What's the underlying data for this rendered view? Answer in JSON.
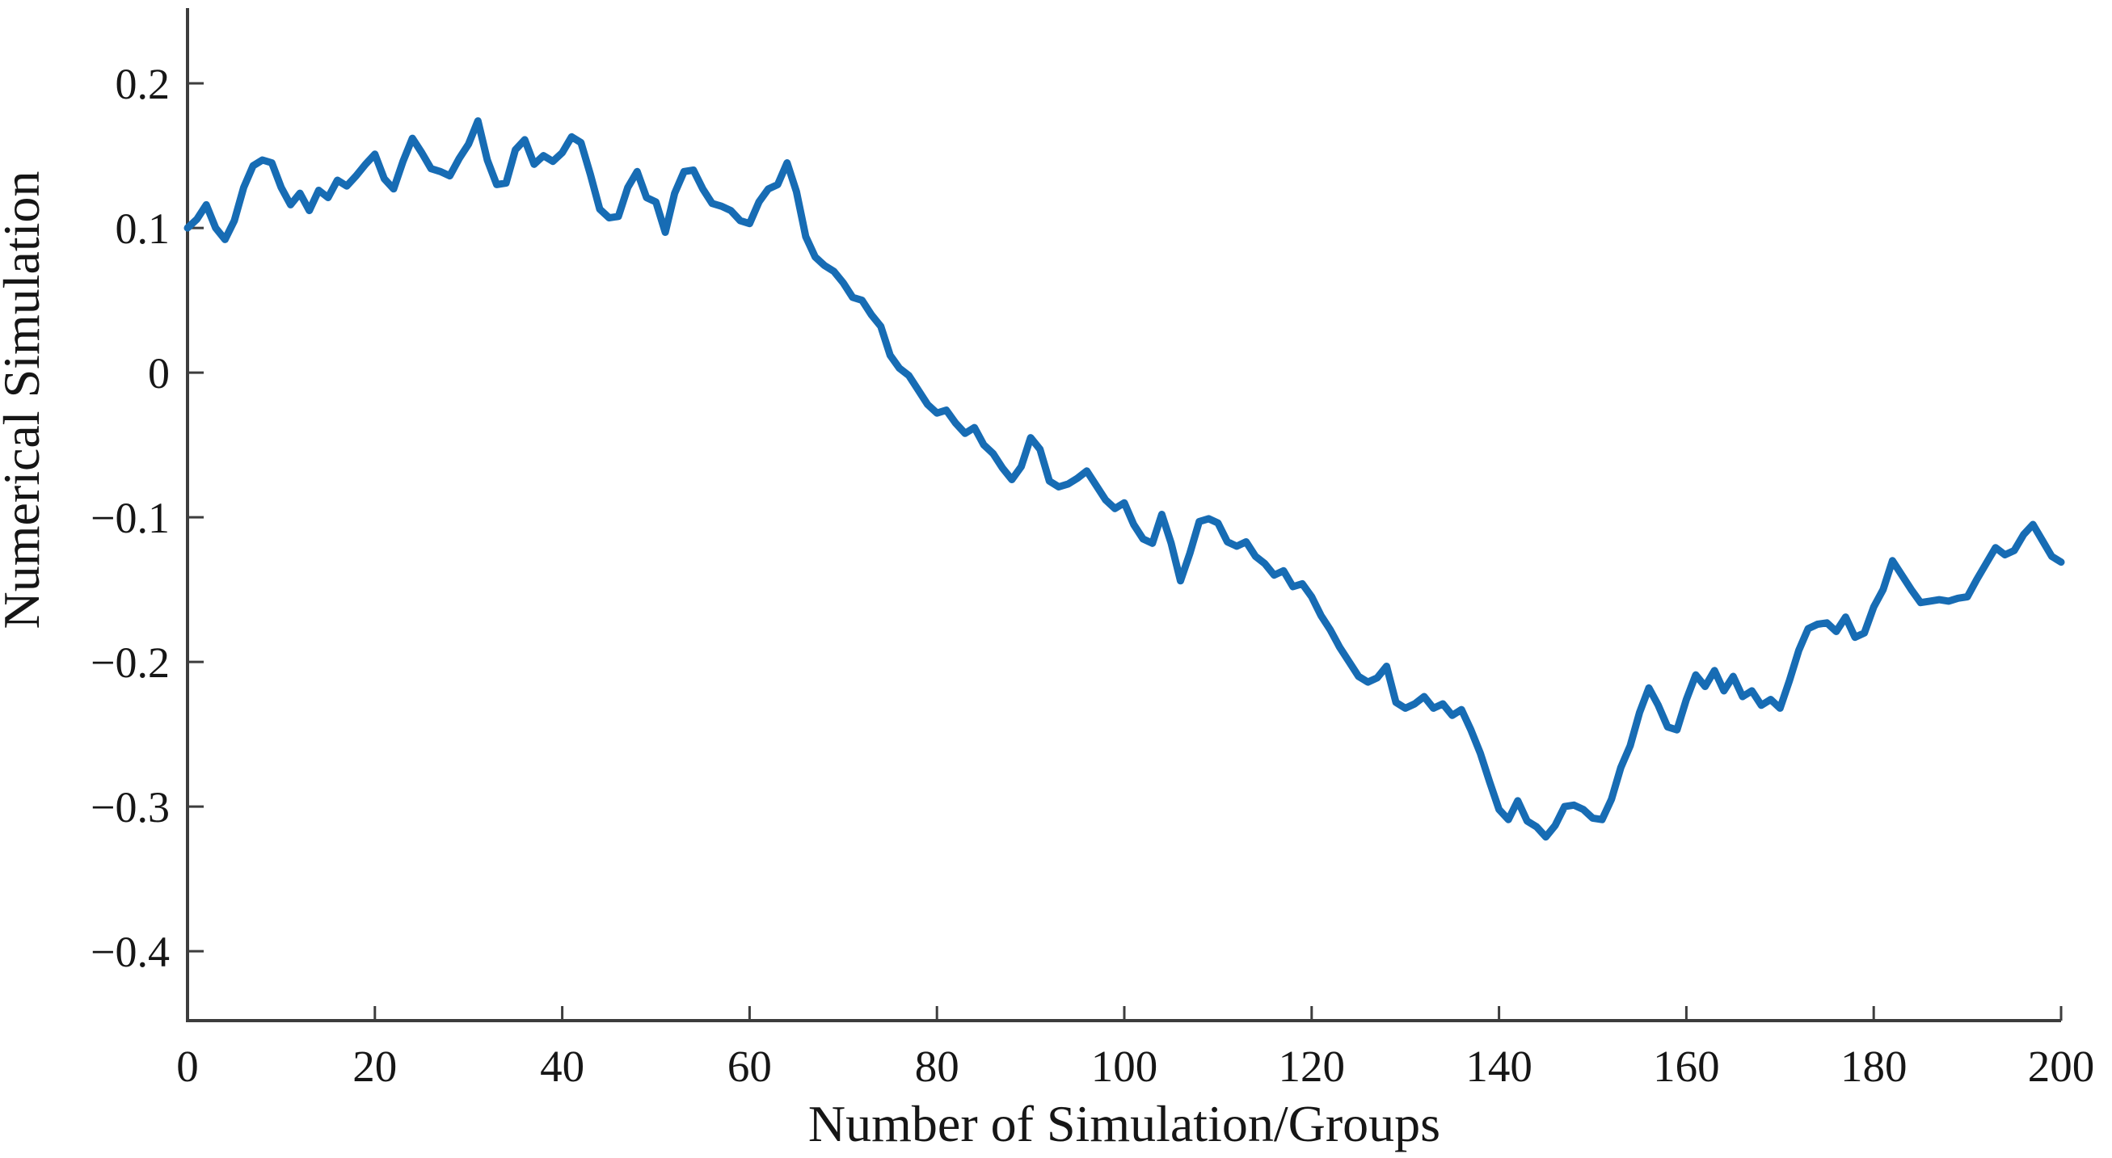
{
  "figure": {
    "background_color": "#ffffff",
    "axis_color": "#3d3d3d",
    "text_color": "#161616"
  },
  "chart_data": {
    "type": "line",
    "title": "",
    "xlabel": "Number of Simulation/Groups",
    "ylabel": "Numerical Simulation",
    "xlim": [
      0,
      200
    ],
    "ylim": [
      -0.448,
      0.252
    ],
    "grid": false,
    "legend": "none",
    "x_ticks": [
      0,
      20,
      40,
      60,
      80,
      100,
      120,
      140,
      160,
      180,
      200
    ],
    "x_tick_labels": [
      "0",
      "20",
      "40",
      "60",
      "80",
      "100",
      "120",
      "140",
      "160",
      "180",
      "200"
    ],
    "y_ticks": [
      0.2,
      0.1,
      0,
      -0.1,
      -0.2,
      -0.3,
      -0.4
    ],
    "y_tick_labels": [
      "0.2",
      "0.1",
      "0",
      "−0.1",
      "−0.2",
      "−0.3",
      "−0.4"
    ],
    "series": [
      {
        "name": "numerical-simulation",
        "color": "#176CB4",
        "line_width": 9,
        "x_start": 0,
        "x_step": 1,
        "x_note": "x value of point i = x_start + i * x_step (0..200)",
        "values": [
          0.1,
          0.106,
          0.116,
          0.1,
          0.092,
          0.105,
          0.128,
          0.143,
          0.147,
          0.145,
          0.128,
          0.116,
          0.124,
          0.112,
          0.126,
          0.121,
          0.133,
          0.129,
          0.136,
          0.144,
          0.151,
          0.134,
          0.127,
          0.146,
          0.162,
          0.152,
          0.141,
          0.139,
          0.136,
          0.148,
          0.158,
          0.174,
          0.147,
          0.13,
          0.131,
          0.154,
          0.161,
          0.144,
          0.15,
          0.146,
          0.152,
          0.163,
          0.159,
          0.137,
          0.113,
          0.107,
          0.108,
          0.128,
          0.139,
          0.121,
          0.118,
          0.097,
          0.124,
          0.139,
          0.14,
          0.127,
          0.117,
          0.115,
          0.112,
          0.105,
          0.103,
          0.118,
          0.127,
          0.13,
          0.145,
          0.125,
          0.094,
          0.08,
          0.074,
          0.07,
          0.062,
          0.052,
          0.05,
          0.04,
          0.032,
          0.012,
          0.003,
          -0.002,
          -0.012,
          -0.022,
          -0.028,
          -0.026,
          -0.035,
          -0.042,
          -0.038,
          -0.05,
          -0.056,
          -0.066,
          -0.074,
          -0.065,
          -0.045,
          -0.053,
          -0.075,
          -0.079,
          -0.077,
          -0.073,
          -0.068,
          -0.078,
          -0.088,
          -0.094,
          -0.09,
          -0.105,
          -0.115,
          -0.118,
          -0.098,
          -0.118,
          -0.144,
          -0.125,
          -0.103,
          -0.101,
          -0.104,
          -0.117,
          -0.12,
          -0.117,
          -0.127,
          -0.132,
          -0.14,
          -0.137,
          -0.148,
          -0.146,
          -0.155,
          -0.168,
          -0.178,
          -0.19,
          -0.2,
          -0.21,
          -0.214,
          -0.211,
          -0.203,
          -0.228,
          -0.232,
          -0.229,
          -0.224,
          -0.232,
          -0.229,
          -0.237,
          -0.233,
          -0.247,
          -0.263,
          -0.283,
          -0.302,
          -0.309,
          -0.296,
          -0.31,
          -0.314,
          -0.321,
          -0.313,
          -0.3,
          -0.299,
          -0.302,
          -0.308,
          -0.309,
          -0.295,
          -0.273,
          -0.258,
          -0.235,
          -0.218,
          -0.23,
          -0.245,
          -0.247,
          -0.226,
          -0.209,
          -0.217,
          -0.206,
          -0.22,
          -0.21,
          -0.224,
          -0.22,
          -0.23,
          -0.226,
          -0.232,
          -0.213,
          -0.192,
          -0.177,
          -0.174,
          -0.173,
          -0.179,
          -0.169,
          -0.183,
          -0.18,
          -0.162,
          -0.15,
          -0.13,
          -0.14,
          -0.15,
          -0.159,
          -0.158,
          -0.157,
          -0.158,
          -0.156,
          -0.155,
          -0.143,
          -0.132,
          -0.121,
          -0.126,
          -0.123,
          -0.112,
          -0.105,
          -0.116,
          -0.127,
          -0.131
        ]
      }
    ]
  }
}
